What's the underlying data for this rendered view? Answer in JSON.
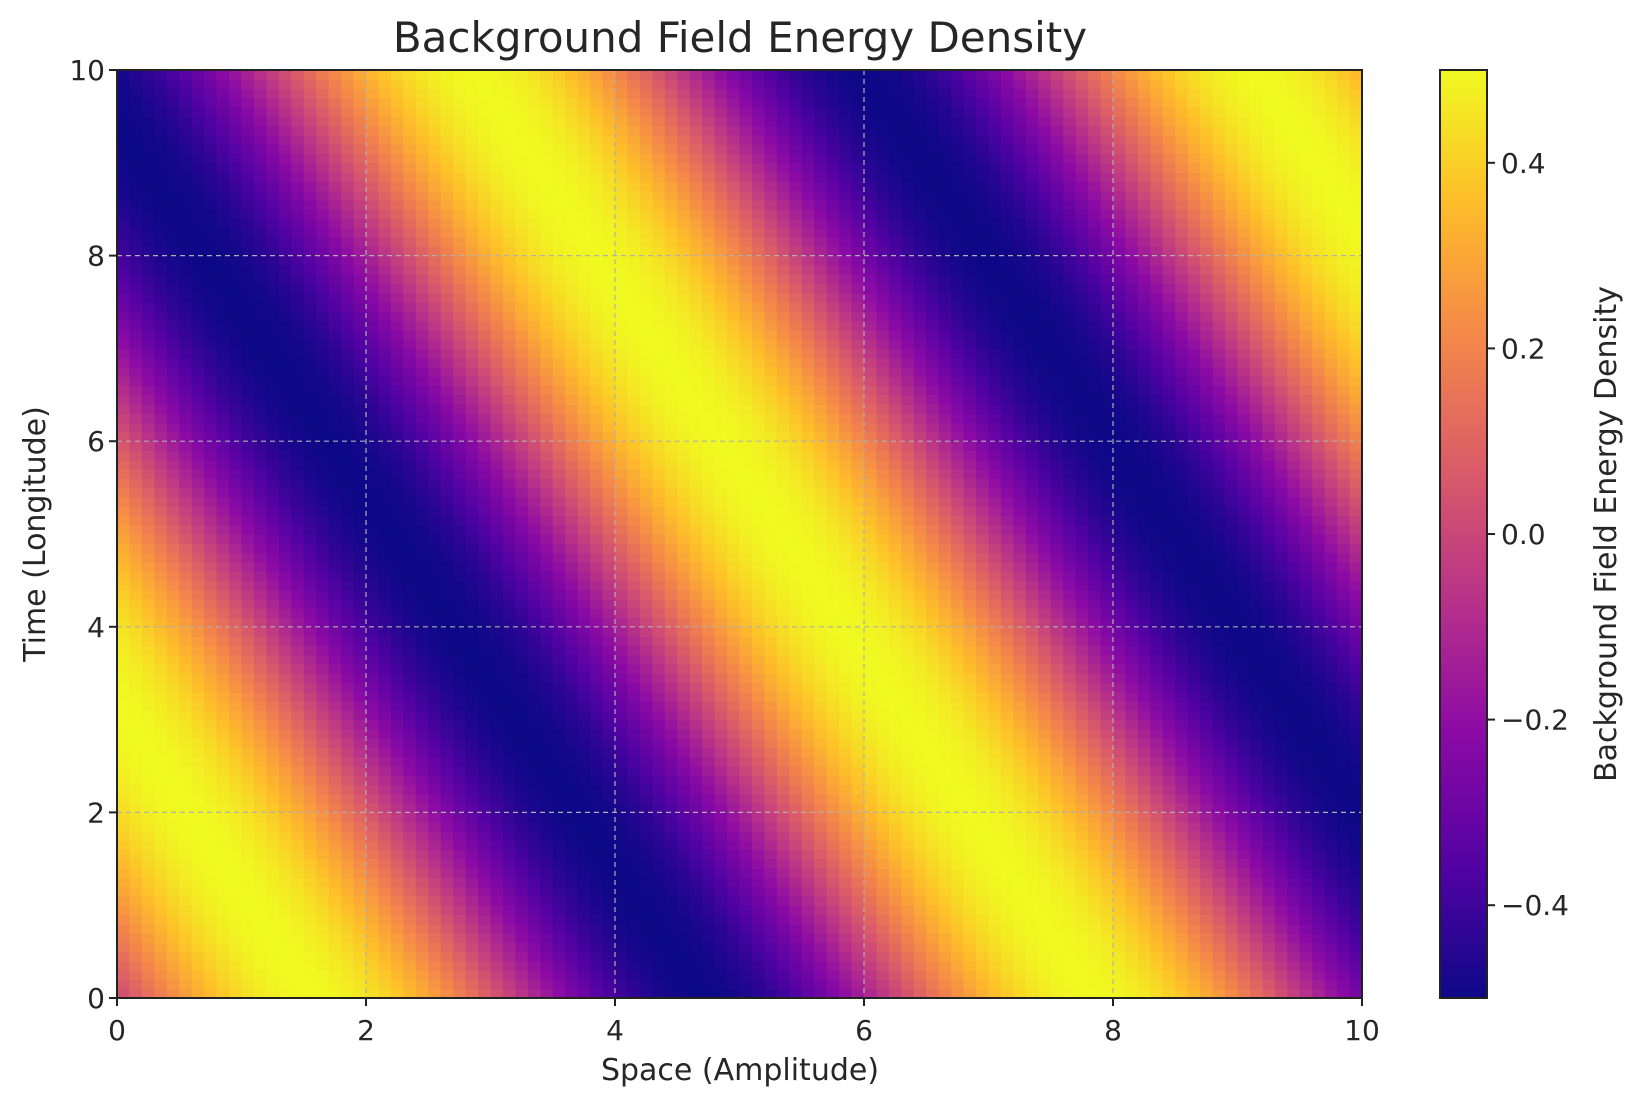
{
  "chart_data": {
    "type": "heatmap",
    "title": "Background Field Energy Density",
    "xlabel": "Space (Amplitude)",
    "ylabel": "Time (Longitude)",
    "xlim": [
      0,
      10
    ],
    "ylim": [
      0,
      10
    ],
    "x_ticks": [
      "0",
      "2",
      "4",
      "6",
      "8",
      "10"
    ],
    "y_ticks": [
      "0",
      "2",
      "4",
      "6",
      "8",
      "10"
    ],
    "grid": true,
    "colormap": "plasma",
    "colormap_stops": [
      "#0d0887",
      "#5302a3",
      "#8b0aa5",
      "#b83289",
      "#db5c68",
      "#f48849",
      "#febd2a",
      "#f0f921"
    ],
    "colorbar": {
      "label": "Background Field Energy Density",
      "range": [
        -0.5,
        0.5
      ],
      "ticks": [
        "−0.4",
        "−0.2",
        "0.0",
        "0.2",
        "0.4"
      ],
      "tick_values": [
        -0.4,
        -0.2,
        0.0,
        0.2,
        0.4
      ]
    },
    "field": {
      "formula": "0.5 * sin(x + 0.5*y)",
      "amplitude": 0.5,
      "kx": 1.0,
      "ky": 0.5,
      "resolution": 100
    }
  }
}
